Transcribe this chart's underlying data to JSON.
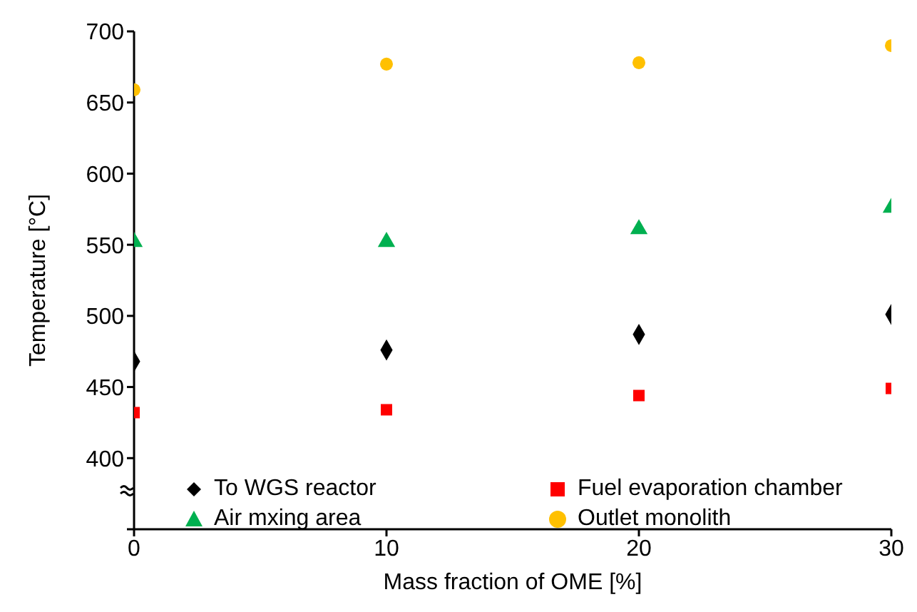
{
  "chart_data": {
    "type": "scatter",
    "xlabel": "Mass fraction of OME [%]",
    "ylabel": "Temperature [°C]",
    "x": [
      0,
      10,
      20,
      30
    ],
    "xlim": [
      0,
      30
    ],
    "xticks": [
      0,
      10,
      20,
      30
    ],
    "ylim": [
      350,
      700
    ],
    "yticks": [
      {
        "value": 350,
        "label": null
      },
      400,
      450,
      500,
      550,
      600,
      650,
      700
    ],
    "grid": false,
    "legend": "bottom",
    "series": [
      {
        "name": "To WGS reactor",
        "color": "#000000",
        "marker": "diamond",
        "values": [
          468,
          476,
          487,
          501
        ]
      },
      {
        "name": "Fuel evaporation chamber",
        "color": "#ff0000",
        "marker": "square",
        "values": [
          432,
          434,
          444,
          449
        ]
      },
      {
        "name": "Air mxing area",
        "color": "#00b050",
        "marker": "triangle",
        "values": [
          552,
          552,
          561,
          576
        ]
      },
      {
        "name": "Outlet monolith",
        "color": "#ffc000",
        "marker": "circle",
        "values": [
          659,
          677,
          678,
          690
        ]
      }
    ]
  }
}
